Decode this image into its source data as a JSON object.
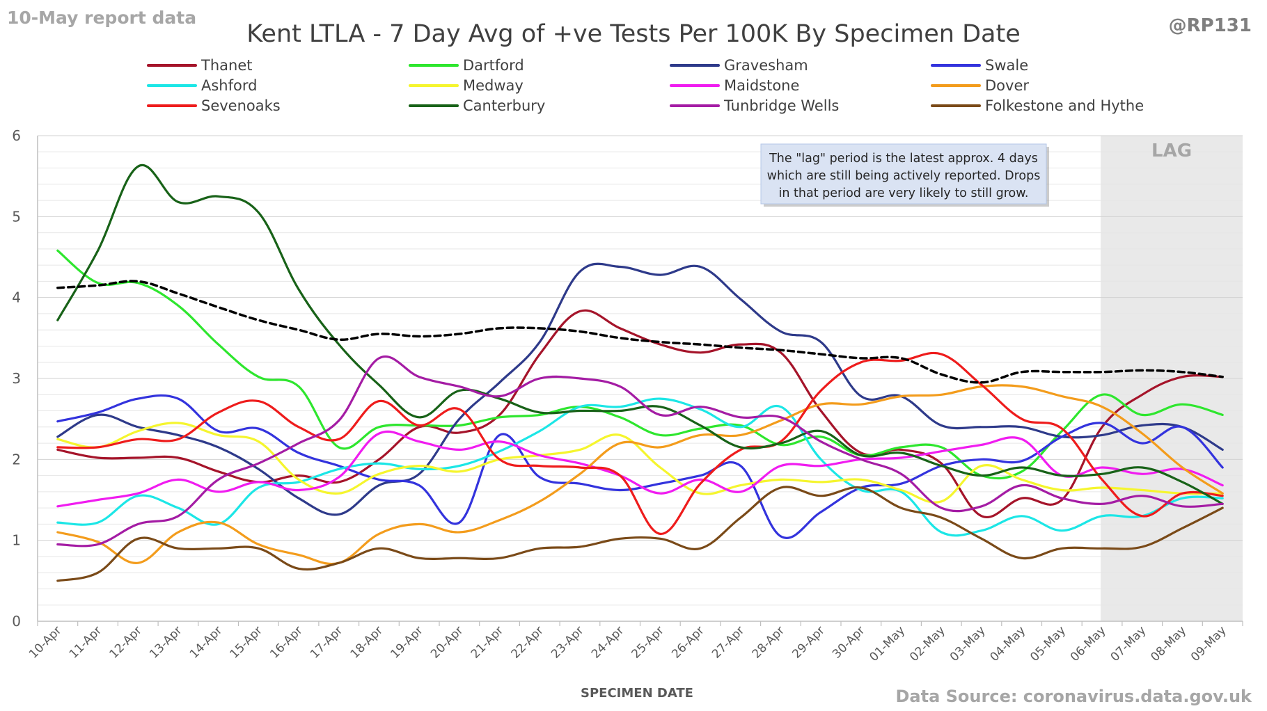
{
  "report_tag": "10-May report data",
  "handle": "@RP131",
  "source": "Data Source: coronavirus.data.gov.uk",
  "chart_data": {
    "type": "line",
    "title": "Kent  LTLA - 7 Day Avg of +ve Tests Per 100K By Specimen Date",
    "xlabel": "SPECIMEN DATE",
    "ylabel": "",
    "ylim": [
      0,
      6
    ],
    "yticks": [
      0,
      1,
      2,
      3,
      4,
      5,
      6
    ],
    "grid": "horizontal minor lines every 0.2",
    "legend_position": "top",
    "categories": [
      "10-Apr",
      "11-Apr",
      "12-Apr",
      "13-Apr",
      "14-Apr",
      "15-Apr",
      "16-Apr",
      "17-Apr",
      "18-Apr",
      "19-Apr",
      "20-Apr",
      "21-Apr",
      "22-Apr",
      "23-Apr",
      "24-Apr",
      "25-Apr",
      "26-Apr",
      "27-Apr",
      "28-Apr",
      "29-Apr",
      "30-Apr",
      "01-May",
      "02-May",
      "03-May",
      "04-May",
      "05-May",
      "06-May",
      "07-May",
      "08-May",
      "09-May"
    ],
    "lag_region": {
      "label": "LAG",
      "from": "06-May",
      "to": "09-May"
    },
    "annotation": [
      "The \"lag\" period is the latest approx. 4 days",
      "which are still being actively reported.  Drops",
      "in that period are very likely to still grow."
    ],
    "series": [
      {
        "name": "Thanet",
        "color": "#a5142a",
        "values": [
          2.12,
          2.02,
          2.02,
          2.02,
          1.85,
          1.72,
          1.8,
          1.72,
          2.0,
          2.4,
          2.33,
          2.55,
          3.3,
          3.83,
          3.62,
          3.42,
          3.32,
          3.42,
          3.32,
          2.6,
          2.08,
          2.12,
          1.95,
          1.3,
          1.52,
          1.5,
          2.4,
          2.8,
          3.02,
          3.02
        ]
      },
      {
        "name": "Dartford",
        "color": "#2ee62e",
        "values": [
          4.58,
          4.18,
          4.18,
          3.9,
          3.42,
          3.02,
          2.9,
          2.15,
          2.4,
          2.42,
          2.42,
          2.52,
          2.55,
          2.65,
          2.52,
          2.3,
          2.38,
          2.42,
          2.18,
          2.28,
          2.05,
          2.15,
          2.15,
          1.8,
          1.85,
          2.35,
          2.8,
          2.55,
          2.68,
          2.55
        ]
      },
      {
        "name": "Gravesham",
        "color": "#2e3a8a",
        "values": [
          2.28,
          2.55,
          2.4,
          2.3,
          2.15,
          1.88,
          1.52,
          1.32,
          1.68,
          1.82,
          2.5,
          2.95,
          3.45,
          4.32,
          4.38,
          4.28,
          4.38,
          3.98,
          3.58,
          3.45,
          2.78,
          2.78,
          2.42,
          2.4,
          2.4,
          2.28,
          2.3,
          2.42,
          2.4,
          2.12
        ]
      },
      {
        "name": "Swale",
        "color": "#3333dd",
        "values": [
          2.47,
          2.58,
          2.75,
          2.75,
          2.35,
          2.38,
          2.08,
          1.92,
          1.75,
          1.68,
          1.22,
          2.3,
          1.78,
          1.7,
          1.62,
          1.7,
          1.8,
          1.92,
          1.05,
          1.35,
          1.65,
          1.7,
          1.92,
          2.0,
          1.98,
          2.28,
          2.45,
          2.2,
          2.4,
          1.9
        ]
      },
      {
        "name": "Ashford",
        "color": "#1ce6e6",
        "values": [
          1.22,
          1.22,
          1.55,
          1.4,
          1.2,
          1.65,
          1.72,
          1.88,
          1.95,
          1.88,
          1.92,
          2.1,
          2.35,
          2.65,
          2.65,
          2.75,
          2.62,
          2.4,
          2.65,
          2.0,
          1.62,
          1.6,
          1.1,
          1.12,
          1.3,
          1.12,
          1.3,
          1.3,
          1.52,
          1.52
        ]
      },
      {
        "name": "Medway",
        "color": "#f5f52e",
        "values": [
          2.25,
          2.15,
          2.35,
          2.45,
          2.3,
          2.22,
          1.75,
          1.58,
          1.82,
          1.92,
          1.85,
          2.0,
          2.05,
          2.12,
          2.3,
          1.9,
          1.58,
          1.68,
          1.75,
          1.72,
          1.75,
          1.62,
          1.48,
          1.92,
          1.75,
          1.62,
          1.65,
          1.62,
          1.58,
          1.58
        ]
      },
      {
        "name": "Maidstone",
        "color": "#f01cf0",
        "values": [
          1.42,
          1.5,
          1.58,
          1.75,
          1.6,
          1.72,
          1.62,
          1.78,
          2.32,
          2.22,
          2.12,
          2.22,
          2.05,
          1.95,
          1.8,
          1.58,
          1.75,
          1.6,
          1.92,
          1.92,
          2.0,
          2.02,
          2.1,
          2.18,
          2.25,
          1.8,
          1.9,
          1.82,
          1.88,
          1.68
        ]
      },
      {
        "name": "Dover",
        "color": "#f39c1c",
        "values": [
          1.1,
          0.98,
          0.72,
          1.1,
          1.22,
          0.95,
          0.82,
          0.72,
          1.08,
          1.2,
          1.1,
          1.25,
          1.48,
          1.82,
          2.2,
          2.15,
          2.3,
          2.3,
          2.48,
          2.68,
          2.68,
          2.78,
          2.8,
          2.9,
          2.9,
          2.78,
          2.65,
          2.32,
          1.9,
          1.58
        ]
      },
      {
        "name": "Sevenoaks",
        "color": "#ee1c1c",
        "values": [
          2.15,
          2.15,
          2.25,
          2.25,
          2.58,
          2.72,
          2.4,
          2.25,
          2.72,
          2.42,
          2.62,
          2.0,
          1.92,
          1.9,
          1.8,
          1.08,
          1.7,
          2.12,
          2.22,
          2.85,
          3.2,
          3.22,
          3.3,
          2.92,
          2.5,
          2.38,
          1.75,
          1.3,
          1.58,
          1.55
        ]
      },
      {
        "name": "Canterbury",
        "color": "#186218",
        "values": [
          3.72,
          4.58,
          5.62,
          5.18,
          5.25,
          5.05,
          4.1,
          3.42,
          2.92,
          2.52,
          2.85,
          2.75,
          2.58,
          2.6,
          2.6,
          2.65,
          2.42,
          2.15,
          2.2,
          2.35,
          2.05,
          2.08,
          1.92,
          1.8,
          1.9,
          1.8,
          1.82,
          1.9,
          1.72,
          1.45
        ]
      },
      {
        "name": "Tunbridge Wells",
        "color": "#a41ca4",
        "values": [
          0.95,
          0.95,
          1.2,
          1.3,
          1.75,
          1.95,
          2.2,
          2.48,
          3.25,
          3.02,
          2.9,
          2.78,
          3.0,
          3.0,
          2.9,
          2.55,
          2.65,
          2.52,
          2.52,
          2.22,
          2.0,
          1.82,
          1.4,
          1.42,
          1.68,
          1.52,
          1.45,
          1.55,
          1.42,
          1.45
        ]
      },
      {
        "name": "Folkestone and Hythe",
        "color": "#7a4a18",
        "values": [
          0.5,
          0.6,
          1.02,
          0.9,
          0.9,
          0.9,
          0.65,
          0.72,
          0.9,
          0.78,
          0.78,
          0.78,
          0.9,
          0.92,
          1.02,
          1.02,
          0.9,
          1.28,
          1.65,
          1.55,
          1.65,
          1.4,
          1.28,
          1.02,
          0.78,
          0.9,
          0.9,
          0.92,
          1.15,
          1.4
        ]
      },
      {
        "name": "",
        "color": "#000000",
        "dashed": true,
        "values": [
          4.12,
          4.15,
          4.2,
          4.05,
          3.88,
          3.72,
          3.6,
          3.48,
          3.55,
          3.52,
          3.55,
          3.62,
          3.62,
          3.58,
          3.5,
          3.45,
          3.42,
          3.38,
          3.35,
          3.3,
          3.25,
          3.25,
          3.05,
          2.95,
          3.08,
          3.08,
          3.08,
          3.1,
          3.08,
          3.02
        ]
      }
    ]
  }
}
